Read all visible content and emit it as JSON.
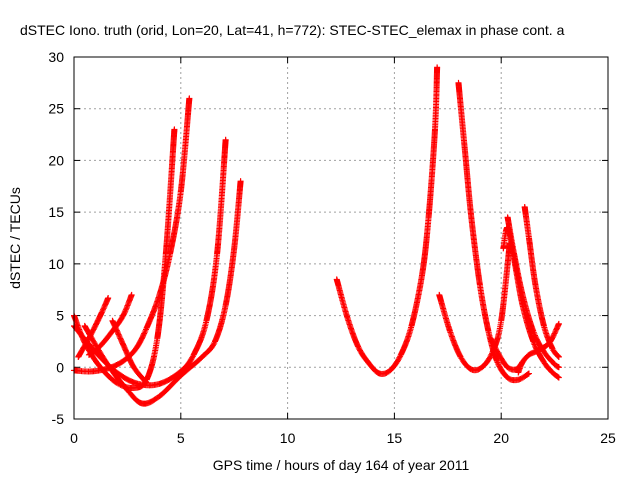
{
  "chart_data": {
    "type": "scatter",
    "title": "dSTEC Iono. truth (orid, Lon=20, Lat=41, h=772): STEC-STEC_elemax in phase cont. a",
    "xlabel": "GPS time / hours of day 164 of year 2011",
    "ylabel": "dSTEC  / TECUs",
    "xlim": [
      0,
      25
    ],
    "ylim": [
      -5,
      30
    ],
    "x_ticks": [
      0,
      5,
      10,
      15,
      20,
      25
    ],
    "y_ticks": [
      -5,
      0,
      5,
      10,
      15,
      20,
      25,
      30
    ],
    "grid": true,
    "marker": "+",
    "marker_color": "#ff0000",
    "series": [
      {
        "x": [
          0.0,
          0.8,
          1.6,
          2.3,
          2.9,
          3.4,
          4.0,
          4.5,
          5.0,
          5.4
        ],
        "y": [
          -0.3,
          -0.4,
          -0.1,
          0.6,
          1.8,
          3.8,
          7.0,
          11.0,
          17.0,
          26.0
        ]
      },
      {
        "x": [
          0.0,
          0.5,
          1.2,
          2.0,
          2.8,
          3.4,
          3.9,
          4.3,
          4.7
        ],
        "y": [
          5.0,
          2.4,
          0.1,
          -1.5,
          -2.0,
          -1.2,
          2.8,
          11.0,
          23.0
        ]
      },
      {
        "x": [
          0.0,
          1.0,
          2.0,
          3.0,
          4.0,
          5.0,
          5.6,
          6.2,
          6.7,
          7.1
        ],
        "y": [
          4.0,
          1.5,
          -0.5,
          -1.6,
          -1.6,
          -0.4,
          1.2,
          4.5,
          11.0,
          22.0
        ]
      },
      {
        "x": [
          0.5,
          1.5,
          2.5,
          3.2,
          4.0,
          5.0,
          6.0,
          6.6,
          7.1,
          7.5,
          7.8
        ],
        "y": [
          4.0,
          0.5,
          -2.2,
          -3.5,
          -2.8,
          -0.8,
          1.0,
          2.5,
          6.0,
          11.5,
          18.0
        ]
      },
      {
        "x": [
          0.2,
          0.8,
          1.3,
          1.6
        ],
        "y": [
          1.0,
          3.2,
          5.3,
          6.7
        ]
      },
      {
        "x": [
          0.7,
          1.2,
          1.8,
          2.3,
          2.7
        ],
        "y": [
          1.2,
          2.0,
          3.5,
          5.0,
          7.0
        ]
      },
      {
        "x": [
          1.8,
          2.3,
          2.8,
          3.4
        ],
        "y": [
          4.5,
          2.2,
          0.0,
          -1.5
        ]
      },
      {
        "x": [
          12.3,
          12.8,
          13.3,
          13.8,
          14.3,
          14.8,
          15.3,
          15.8,
          16.3,
          16.6,
          16.9,
          17.0
        ],
        "y": [
          8.5,
          4.8,
          2.0,
          0.4,
          -0.6,
          -0.3,
          1.2,
          4.0,
          9.0,
          14.5,
          23.0,
          29.0
        ]
      },
      {
        "x": [
          17.1,
          17.6,
          18.1,
          18.6,
          19.1,
          19.6,
          20.0,
          20.4
        ],
        "y": [
          7.0,
          3.5,
          1.0,
          -0.2,
          0.0,
          1.5,
          4.5,
          12.0
        ]
      },
      {
        "x": [
          18.0,
          18.3,
          18.6,
          19.0,
          19.4,
          19.8,
          20.3,
          20.8,
          21.3
        ],
        "y": [
          27.5,
          21.0,
          14.5,
          8.0,
          3.5,
          0.6,
          -1.0,
          -1.2,
          -0.6
        ]
      },
      {
        "x": [
          20.1,
          20.3,
          20.6,
          21.0,
          21.5,
          22.0,
          22.4,
          22.7
        ],
        "y": [
          11.5,
          13.5,
          10.5,
          6.0,
          2.5,
          0.5,
          -0.5,
          -1.0
        ]
      },
      {
        "x": [
          20.3,
          20.6,
          21.0,
          21.5,
          22.0,
          22.5,
          22.7
        ],
        "y": [
          14.5,
          11.0,
          7.0,
          3.5,
          1.5,
          0.3,
          0.0
        ]
      },
      {
        "x": [
          21.1,
          21.3,
          21.6,
          22.0,
          22.4,
          22.7
        ],
        "y": [
          15.5,
          12.5,
          8.0,
          4.0,
          1.8,
          1.0
        ]
      },
      {
        "x": [
          20.8,
          21.0,
          21.3,
          21.6,
          21.9,
          22.3,
          22.7
        ],
        "y": [
          -0.5,
          0.5,
          1.2,
          1.5,
          1.8,
          2.5,
          4.2
        ]
      },
      {
        "x": [
          19.5,
          19.9,
          20.3,
          20.7,
          21.0
        ],
        "y": [
          2.8,
          1.2,
          0.0,
          -0.2,
          0.5
        ]
      }
    ]
  }
}
